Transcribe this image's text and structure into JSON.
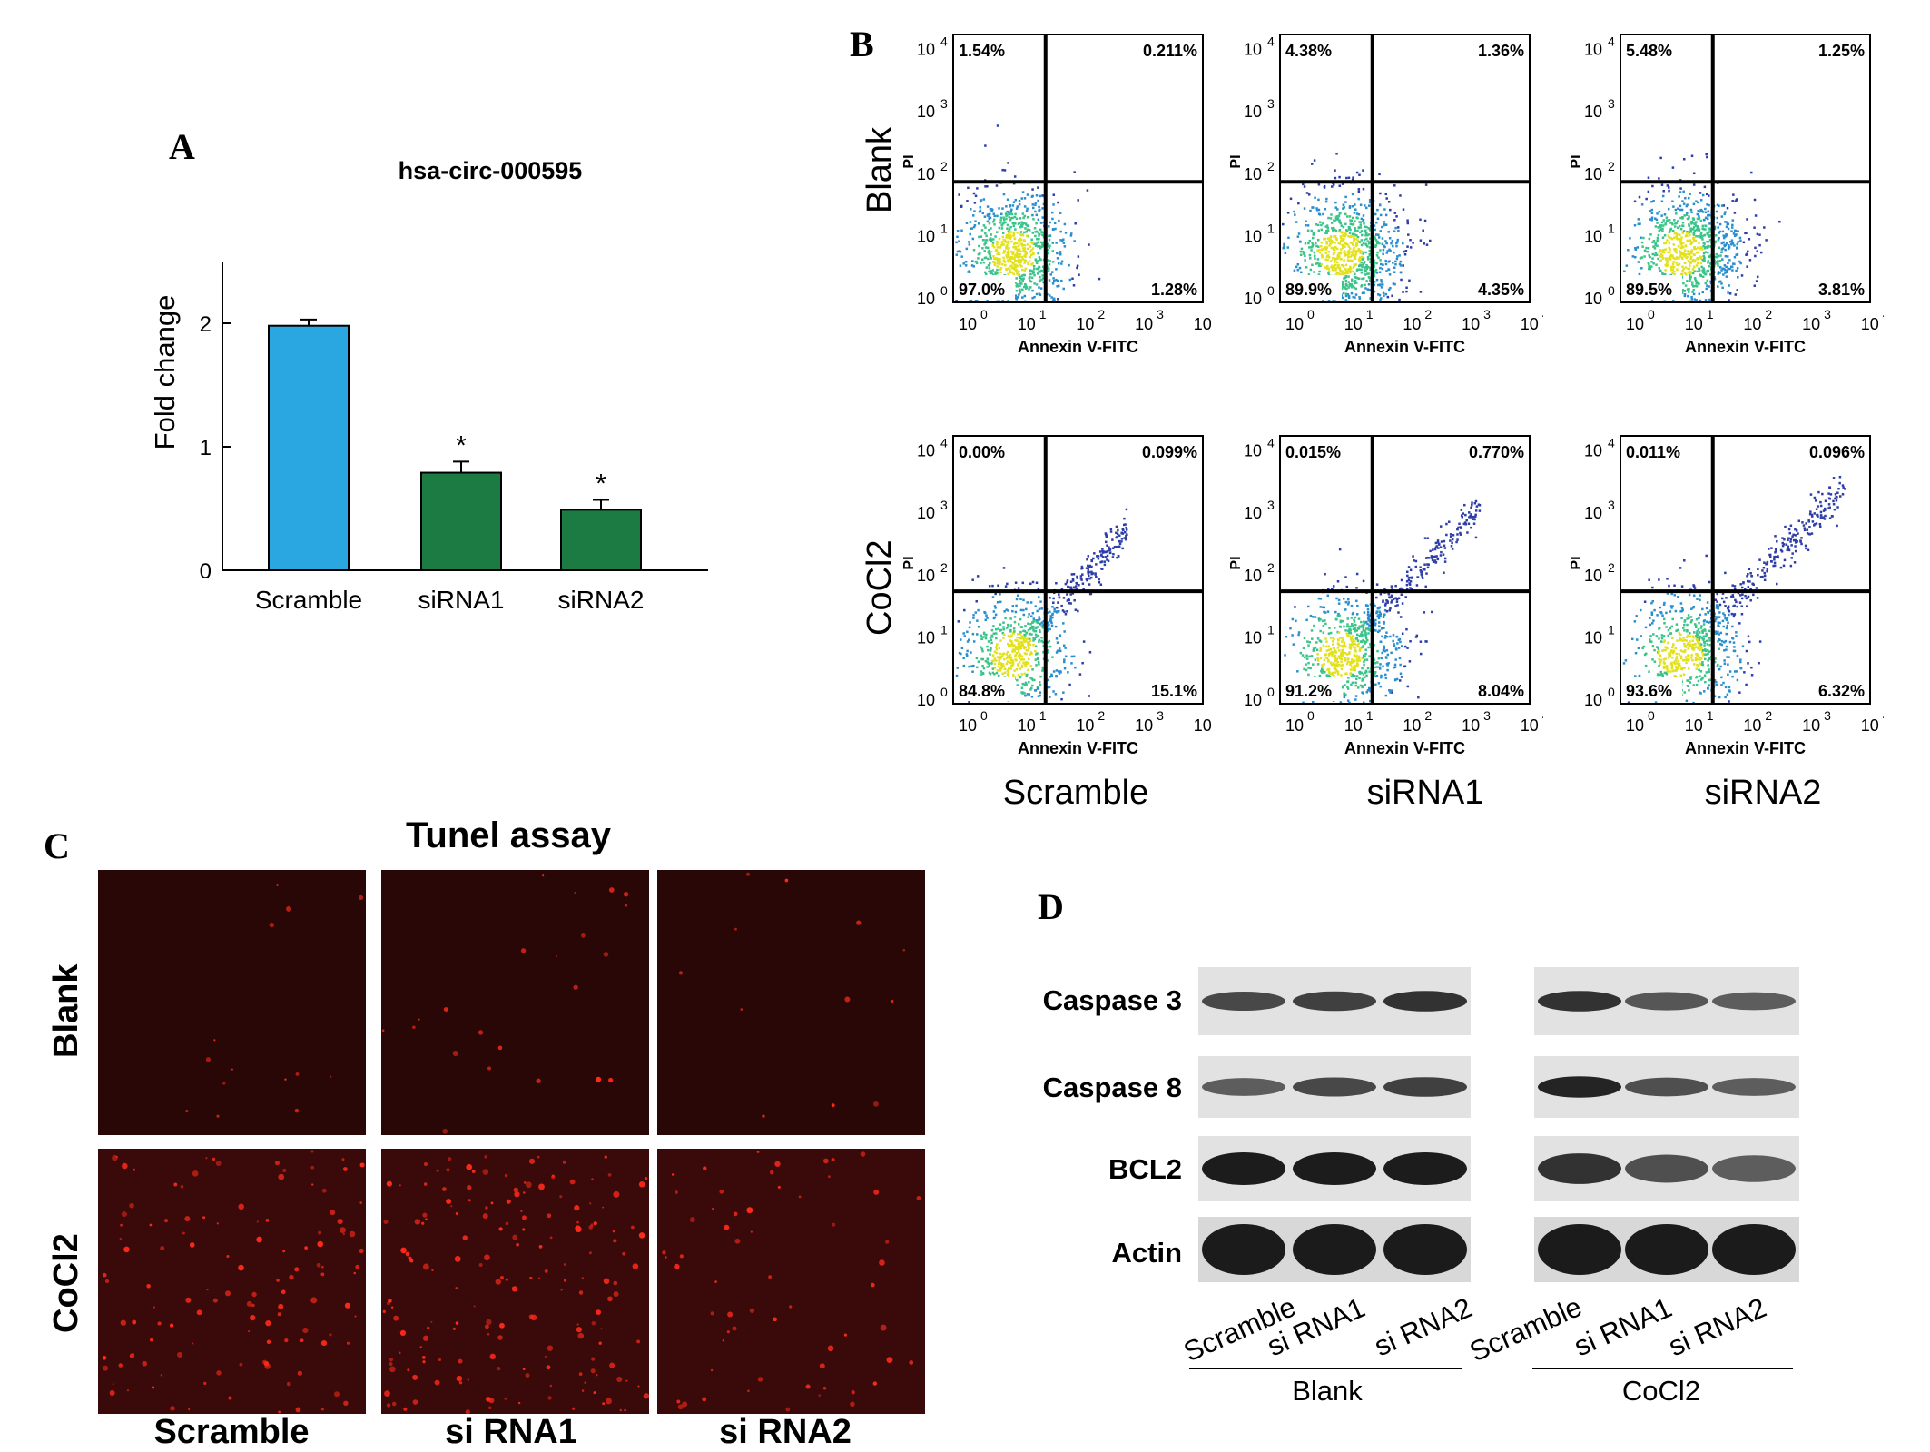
{
  "panels": {
    "a": "A",
    "b": "B",
    "c": "C",
    "d": "D"
  },
  "panel_a": {
    "title": "hsa-circ-000595"
  },
  "chart_data": {
    "type": "bar",
    "title": "hsa-circ-000595",
    "xlabel": "",
    "ylabel": "Fold change",
    "categories": [
      "Scramble",
      "siRNA1",
      "siRNA2"
    ],
    "values": [
      1.98,
      0.79,
      0.49
    ],
    "errors": [
      0.05,
      0.09,
      0.08
    ],
    "significance": [
      "",
      "*",
      "*"
    ],
    "bar_colors": [
      "#2aa6e0",
      "#1c7a43",
      "#1c7a43"
    ],
    "ylim": [
      0,
      2.5
    ],
    "yticks": [
      "0",
      "1",
      "2"
    ],
    "grid": false
  },
  "panel_b": {
    "row_labels": [
      "Blank",
      "CoCl2"
    ],
    "col_labels": [
      "Scramble",
      "siRNA1",
      "siRNA2"
    ],
    "x_axis_label": "Annexin V-FITC",
    "y_axis_label": "PI",
    "tick_base": "10",
    "tick_exps": [
      "0",
      "1",
      "2",
      "3",
      "4"
    ],
    "plots": [
      {
        "quadrants": [
          "1.54%",
          "0.211%",
          "97.0%",
          "1.28%"
        ]
      },
      {
        "quadrants": [
          "4.38%",
          "1.36%",
          "89.9%",
          "4.35%"
        ]
      },
      {
        "quadrants": [
          "5.48%",
          "1.25%",
          "89.5%",
          "3.81%"
        ]
      },
      {
        "quadrants": [
          "0.00%",
          "0.099%",
          "84.8%",
          "15.1%"
        ]
      },
      {
        "quadrants": [
          "0.015%",
          "0.770%",
          "91.2%",
          "8.04%"
        ]
      },
      {
        "quadrants": [
          "0.011%",
          "0.096%",
          "93.6%",
          "6.32%"
        ]
      }
    ]
  },
  "panel_c": {
    "title": "Tunel assay",
    "row_labels": [
      "Blank",
      "CoCl2"
    ],
    "col_labels": [
      "Scramble",
      "si RNA1",
      "si RNA2"
    ]
  },
  "panel_d": {
    "proteins": [
      "Caspase 3",
      "Caspase 8",
      "BCL2",
      "Actin"
    ],
    "lane_labels": [
      "Scramble",
      "si RNA1",
      "si RNA2",
      "Scramble",
      "si RNA1",
      "si RNA2"
    ],
    "group_labels": [
      "Blank",
      "CoCl2"
    ]
  },
  "colors": {
    "bar_blue": "#2aa6e0",
    "bar_green": "#1c7a43",
    "fluor_bg": "#2a0707",
    "fluor_dot": "#ff2a1a"
  }
}
